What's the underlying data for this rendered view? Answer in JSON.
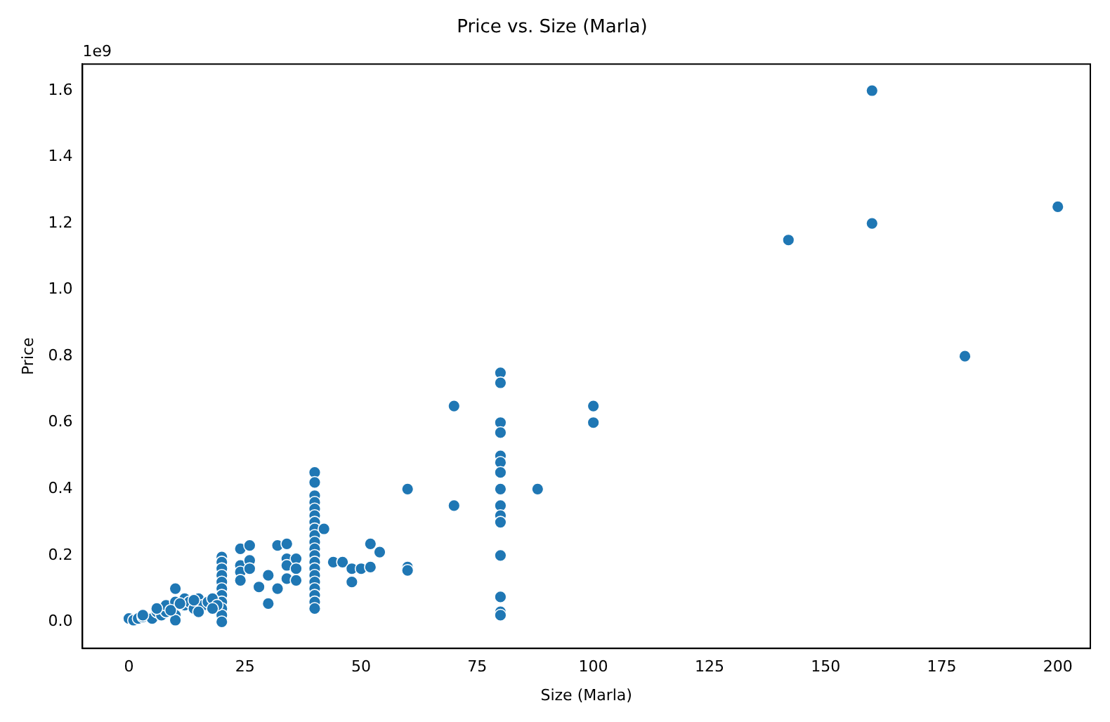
{
  "chart_data": {
    "type": "scatter",
    "title": "Price vs. Size (Marla)",
    "xlabel": "Size (Marla)",
    "ylabel": "Price",
    "annotations": [
      "1e9"
    ],
    "xlim": [
      -10,
      207
    ],
    "xticks": [
      0,
      25,
      50,
      75,
      100,
      125,
      150,
      175,
      200
    ],
    "ylim": [
      -0.08,
      1.68
    ],
    "yticks": [
      {
        "value": 0,
        "label": "0.0"
      },
      0.2,
      0.4,
      0.6,
      0.8,
      {
        "value": 1,
        "label": "1.0"
      },
      1.2,
      1.4,
      1.6
    ],
    "grid": false,
    "legend": false,
    "marker": "circle",
    "series": [
      {
        "color": "#1f77b4",
        "x": [
          160,
          160,
          142,
          200,
          180,
          100,
          100,
          88,
          70,
          70,
          60,
          60,
          60,
          80,
          80,
          80,
          80,
          80,
          80,
          80,
          80,
          80,
          80,
          80,
          80,
          80,
          80,
          80,
          40,
          40,
          40,
          40,
          40,
          40,
          40,
          40,
          40,
          40,
          40,
          40,
          40,
          40,
          40,
          40,
          40,
          40,
          40,
          40,
          42,
          52,
          54,
          44,
          46,
          48,
          50,
          52,
          48,
          24,
          26,
          32,
          34,
          24,
          24,
          24,
          26,
          26,
          28,
          30,
          30,
          32,
          34,
          34,
          34,
          36,
          36,
          36,
          20,
          20,
          20,
          20,
          20,
          20,
          20,
          20,
          20,
          20,
          20,
          0,
          1,
          2,
          3,
          5,
          6,
          7,
          8,
          8,
          10,
          10,
          10,
          10,
          12,
          12,
          13,
          14,
          15,
          16,
          17,
          18,
          19,
          3,
          6,
          9,
          11,
          14,
          15,
          18
        ],
        "values": [
          1.6,
          1.2,
          1.15,
          1.25,
          0.8,
          0.65,
          0.6,
          0.4,
          0.65,
          0.35,
          0.4,
          0.165,
          0.155,
          0.75,
          0.72,
          0.6,
          0.57,
          0.5,
          0.48,
          0.45,
          0.4,
          0.35,
          0.32,
          0.3,
          0.2,
          0.075,
          0.03,
          0.02,
          0.45,
          0.42,
          0.38,
          0.36,
          0.34,
          0.32,
          0.3,
          0.28,
          0.26,
          0.24,
          0.22,
          0.2,
          0.18,
          0.16,
          0.14,
          0.12,
          0.1,
          0.08,
          0.06,
          0.04,
          0.28,
          0.235,
          0.21,
          0.18,
          0.18,
          0.16,
          0.16,
          0.165,
          0.12,
          0.22,
          0.23,
          0.23,
          0.235,
          0.17,
          0.15,
          0.125,
          0.185,
          0.16,
          0.105,
          0.14,
          0.055,
          0.1,
          0.19,
          0.17,
          0.13,
          0.19,
          0.16,
          0.125,
          0.195,
          0.18,
          0.16,
          0.14,
          0.12,
          0.1,
          0.08,
          0.06,
          0.04,
          0.02,
          0.0,
          0.01,
          0.005,
          0.01,
          0.015,
          0.01,
          0.03,
          0.02,
          0.03,
          0.05,
          0.06,
          0.1,
          0.02,
          0.005,
          0.05,
          0.07,
          0.06,
          0.04,
          0.07,
          0.05,
          0.06,
          0.07,
          0.05,
          0.02,
          0.04,
          0.035,
          0.055,
          0.065,
          0.03,
          0.04
        ]
      }
    ]
  }
}
